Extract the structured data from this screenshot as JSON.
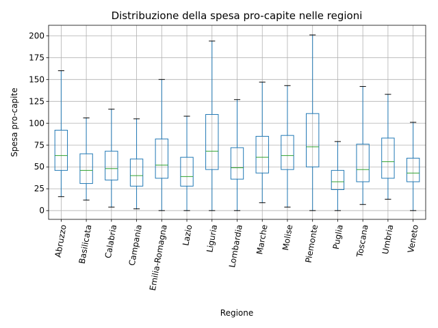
{
  "chart_data": {
    "type": "box",
    "title": "Distribuzione della spesa pro-capite nelle regioni",
    "xlabel": "Regione",
    "ylabel": "Spesa pro-capite",
    "ylim": [
      -10,
      212
    ],
    "yticks": [
      0,
      25,
      50,
      75,
      100,
      125,
      150,
      175,
      200
    ],
    "grid": true,
    "categories": [
      "Abruzzo",
      "Basilicata",
      "Calabria",
      "Campania",
      "Emilia-Romagna",
      "Lazio",
      "Liguria",
      "Lombardia",
      "Marche",
      "Molise",
      "Piemonte",
      "Puglia",
      "Toscana",
      "Umbria",
      "Veneto"
    ],
    "boxes": [
      {
        "whislo": 16,
        "q1": 46,
        "med": 63,
        "q3": 92,
        "whishi": 160
      },
      {
        "whislo": 12,
        "q1": 31,
        "med": 46,
        "q3": 65,
        "whishi": 106
      },
      {
        "whislo": 4,
        "q1": 35,
        "med": 48,
        "q3": 68,
        "whishi": 116
      },
      {
        "whislo": 2,
        "q1": 28,
        "med": 40,
        "q3": 59,
        "whishi": 105
      },
      {
        "whislo": 0,
        "q1": 37,
        "med": 52,
        "q3": 82,
        "whishi": 150
      },
      {
        "whislo": 0,
        "q1": 28,
        "med": 39,
        "q3": 61,
        "whishi": 108
      },
      {
        "whislo": 0,
        "q1": 47,
        "med": 68,
        "q3": 110,
        "whishi": 194
      },
      {
        "whislo": 0,
        "q1": 36,
        "med": 49,
        "q3": 72,
        "whishi": 127
      },
      {
        "whislo": 9,
        "q1": 43,
        "med": 61,
        "q3": 85,
        "whishi": 147
      },
      {
        "whislo": 4,
        "q1": 47,
        "med": 63,
        "q3": 86,
        "whishi": 143
      },
      {
        "whislo": 0,
        "q1": 50,
        "med": 73,
        "q3": 111,
        "whishi": 201
      },
      {
        "whislo": 0,
        "q1": 24,
        "med": 33,
        "q3": 46,
        "whishi": 79
      },
      {
        "whislo": 7,
        "q1": 33,
        "med": 47,
        "q3": 76,
        "whishi": 142
      },
      {
        "whislo": 13,
        "q1": 37,
        "med": 56,
        "q3": 83,
        "whishi": 133
      },
      {
        "whislo": 0,
        "q1": 33,
        "med": 43,
        "q3": 60,
        "whishi": 101
      }
    ],
    "colors": {
      "box": "#1f77b4",
      "median": "#2ca02c",
      "grid": "#b0b0b0"
    }
  }
}
